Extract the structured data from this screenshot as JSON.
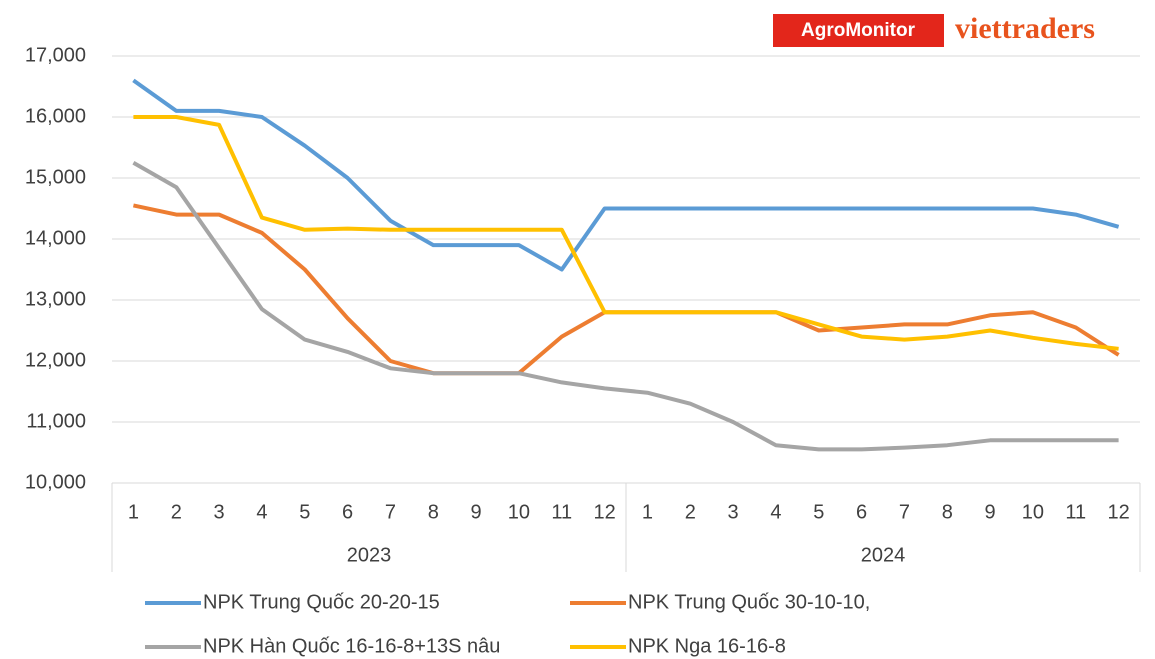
{
  "chart_data": {
    "type": "line",
    "logos": [
      "AgroMonitor",
      "viettraders"
    ],
    "categories": [
      "1",
      "2",
      "3",
      "4",
      "5",
      "6",
      "7",
      "8",
      "9",
      "10",
      "11",
      "12",
      "1",
      "2",
      "3",
      "4",
      "5",
      "6",
      "7",
      "8",
      "9",
      "10",
      "11",
      "12"
    ],
    "category_groups": [
      "2023",
      "2024"
    ],
    "ylim": [
      10000,
      17000
    ],
    "yticks": [
      {
        "value": 10000,
        "label": "10,000"
      },
      {
        "value": 11000,
        "label": "11,000"
      },
      {
        "value": 12000,
        "label": "12,000"
      },
      {
        "value": 13000,
        "label": "13,000"
      },
      {
        "value": 14000,
        "label": "14,000"
      },
      {
        "value": 15000,
        "label": "15,000"
      },
      {
        "value": 16000,
        "label": "16,000"
      },
      {
        "value": 17000,
        "label": "17,000"
      }
    ],
    "grid": true,
    "legend": "bottom",
    "series": [
      {
        "name": "NPK Trung Quốc 20-20-15",
        "color": "#5b9bd5",
        "values": [
          16600,
          16100,
          16100,
          16000,
          15530,
          15000,
          14300,
          13900,
          13900,
          13900,
          13500,
          14500,
          14500,
          14500,
          14500,
          14500,
          14500,
          14500,
          14500,
          14500,
          14500,
          14500,
          14400,
          14200
        ]
      },
      {
        "name": "NPK Trung Quốc 30-10-10,",
        "color": "#ed7d31",
        "values": [
          14550,
          14400,
          14400,
          14100,
          13500,
          12700,
          12000,
          11800,
          11800,
          11800,
          12400,
          12800,
          12800,
          12800,
          12800,
          12800,
          12500,
          12550,
          12600,
          12600,
          12750,
          12800,
          12550,
          12100
        ]
      },
      {
        "name": "NPK Hàn Quốc 16-16-8+13S nâu",
        "color": "#a5a5a5",
        "values": [
          15250,
          14850,
          13850,
          12850,
          12350,
          12150,
          11880,
          11800,
          11800,
          11800,
          11650,
          11550,
          11480,
          11300,
          11000,
          10620,
          10550,
          10550,
          10580,
          10620,
          10700,
          10700,
          10700,
          10700
        ]
      },
      {
        "name": "NPK Nga 16-16-8",
        "color": "#ffc000",
        "values": [
          16000,
          16000,
          15870,
          14350,
          14150,
          14170,
          14150,
          14150,
          14150,
          14150,
          14150,
          12800,
          12800,
          12800,
          12800,
          12800,
          12600,
          12400,
          12350,
          12400,
          12500,
          12380,
          12280,
          12200
        ]
      }
    ]
  }
}
